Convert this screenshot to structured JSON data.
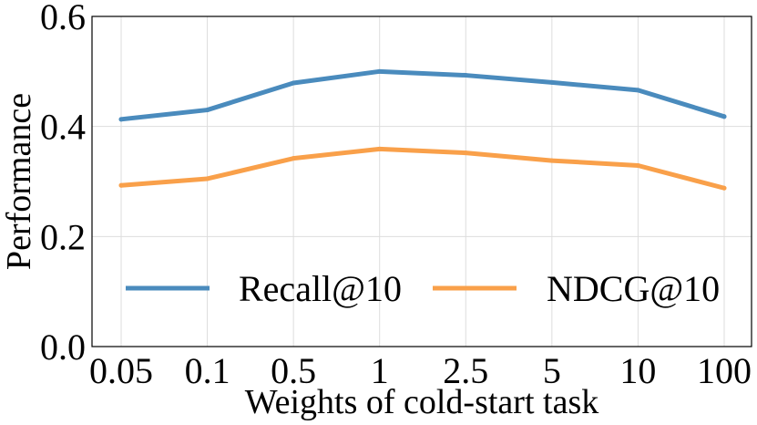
{
  "chart_data": {
    "type": "line",
    "title": "",
    "xlabel": "Weights of cold-start task",
    "ylabel": "Performance",
    "categories": [
      "0.05",
      "0.1",
      "0.5",
      "1",
      "2.5",
      "5",
      "10",
      "100"
    ],
    "series": [
      {
        "name": "Recall@10",
        "color": "#4a8bbd",
        "values": [
          0.413,
          0.43,
          0.479,
          0.5,
          0.493,
          0.48,
          0.466,
          0.418
        ]
      },
      {
        "name": "NDCG@10",
        "color": "#f9a04a",
        "values": [
          0.293,
          0.305,
          0.342,
          0.359,
          0.352,
          0.338,
          0.329,
          0.288
        ]
      }
    ],
    "ylim": [
      0.0,
      0.6
    ],
    "yticks": [
      0.0,
      0.2,
      0.4,
      0.6
    ],
    "ytick_labels": [
      "0.0",
      "0.2",
      "0.4",
      "0.6"
    ],
    "grid": true,
    "legend_position": "lower-center"
  }
}
